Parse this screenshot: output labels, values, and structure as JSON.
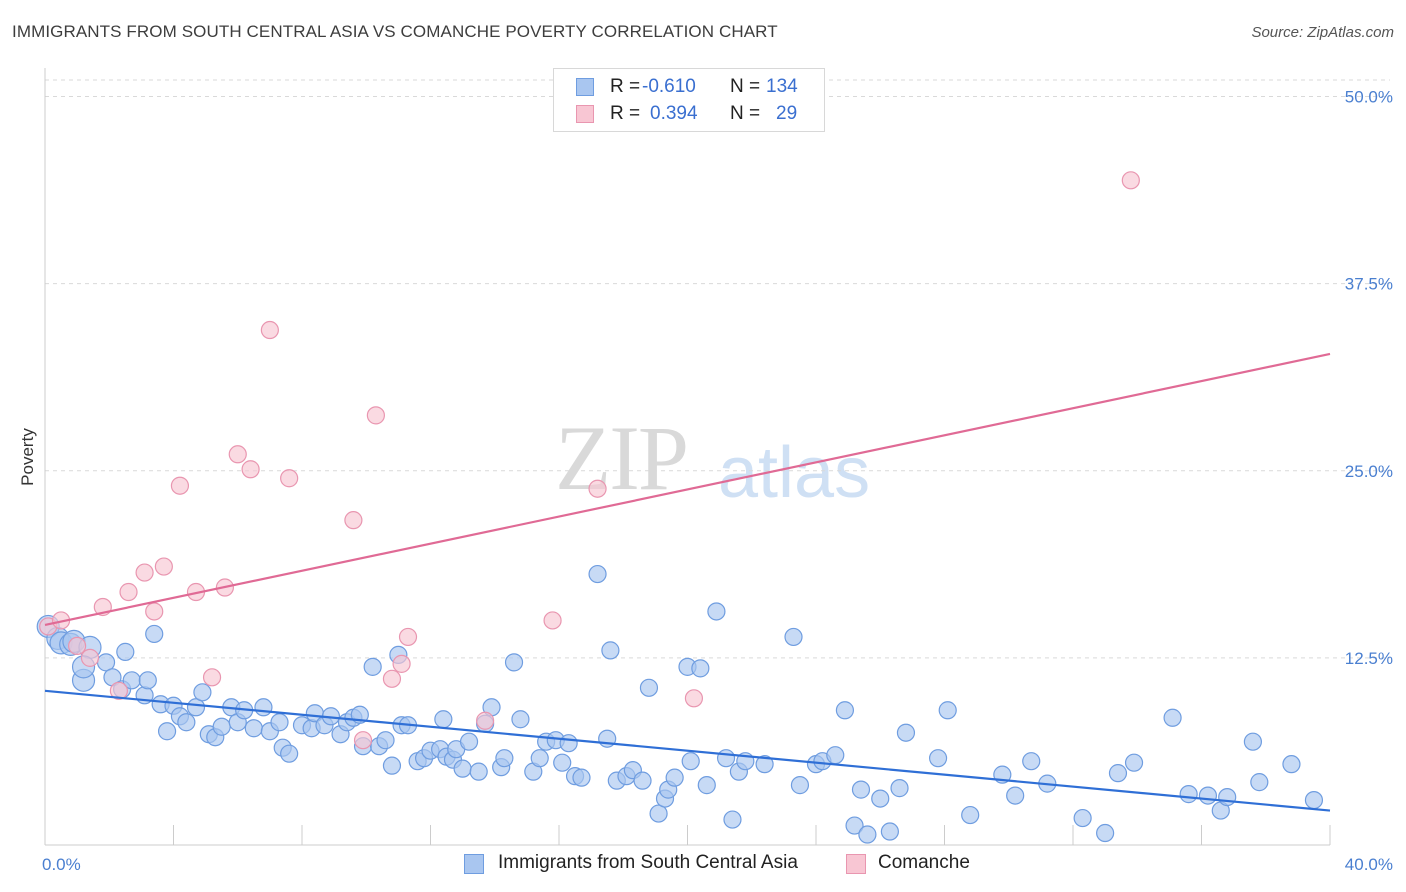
{
  "title": "IMMIGRANTS FROM SOUTH CENTRAL ASIA VS COMANCHE POVERTY CORRELATION CHART",
  "source": "Source: ZipAtlas.com",
  "watermark": {
    "zip": "ZIP",
    "atlas": "atlas"
  },
  "legend": {
    "rows": [
      {
        "r_label": "R =",
        "r_value": "-0.610",
        "n_label": "N =",
        "n_value": "134",
        "color": "#a9c6f0",
        "border": "#6f9de0"
      },
      {
        "r_label": "R =",
        "r_value": "0.394",
        "n_label": "N =",
        "n_value": "29",
        "color": "#f8c6d3",
        "border": "#e996b0"
      }
    ]
  },
  "bottom_legend": [
    {
      "label": "Immigrants from South Central Asia",
      "color": "#a9c6f0",
      "border": "#6f9de0"
    },
    {
      "label": "Comanche",
      "color": "#f8c6d3",
      "border": "#e996b0"
    }
  ],
  "chart_data": {
    "type": "scatter",
    "title": "IMMIGRANTS FROM SOUTH CENTRAL ASIA VS COMANCHE POVERTY CORRELATION CHART",
    "xlabel": "",
    "ylabel": "Poverty",
    "xlim": [
      0,
      40
    ],
    "ylim": [
      0,
      50
    ],
    "x_tick_labels": [
      "0.0%",
      "40.0%"
    ],
    "y_ticks": [
      12.5,
      25.0,
      37.5,
      50.0
    ],
    "y_tick_labels": [
      "12.5%",
      "25.0%",
      "37.5%",
      "50.0%"
    ],
    "grid": "horizontal dashed",
    "series": [
      {
        "name": "Immigrants from South Central Asia",
        "color": "#6f9de0",
        "fill": "#a9c6f0",
        "trend": {
          "x": [
            0,
            40
          ],
          "y": [
            10.3,
            2.3
          ],
          "color": "#2f6fd6"
        },
        "points": [
          [
            0.1,
            14.6
          ],
          [
            0.4,
            13.8
          ],
          [
            0.5,
            13.5
          ],
          [
            0.8,
            13.4
          ],
          [
            0.9,
            13.6
          ],
          [
            1.4,
            13.2
          ],
          [
            1.2,
            11.0
          ],
          [
            1.2,
            11.9
          ],
          [
            1.9,
            12.2
          ],
          [
            2.1,
            11.2
          ],
          [
            2.4,
            10.4
          ],
          [
            2.5,
            12.9
          ],
          [
            2.7,
            11.0
          ],
          [
            3.1,
            10.0
          ],
          [
            3.2,
            11.0
          ],
          [
            3.4,
            14.1
          ],
          [
            3.6,
            9.4
          ],
          [
            3.8,
            7.6
          ],
          [
            4.0,
            9.3
          ],
          [
            4.2,
            8.6
          ],
          [
            4.4,
            8.2
          ],
          [
            4.7,
            9.2
          ],
          [
            4.9,
            10.2
          ],
          [
            5.1,
            7.4
          ],
          [
            5.3,
            7.2
          ],
          [
            5.5,
            7.9
          ],
          [
            5.8,
            9.2
          ],
          [
            6.0,
            8.2
          ],
          [
            6.2,
            9.0
          ],
          [
            6.5,
            7.8
          ],
          [
            6.8,
            9.2
          ],
          [
            7.0,
            7.6
          ],
          [
            7.3,
            8.2
          ],
          [
            7.4,
            6.5
          ],
          [
            7.6,
            6.1
          ],
          [
            8.0,
            8.0
          ],
          [
            8.3,
            7.8
          ],
          [
            8.4,
            8.8
          ],
          [
            8.7,
            8.0
          ],
          [
            8.9,
            8.6
          ],
          [
            9.2,
            7.4
          ],
          [
            9.4,
            8.2
          ],
          [
            9.6,
            8.5
          ],
          [
            9.8,
            8.7
          ],
          [
            9.9,
            6.6
          ],
          [
            10.2,
            11.9
          ],
          [
            10.4,
            6.6
          ],
          [
            10.6,
            7.0
          ],
          [
            10.8,
            5.3
          ],
          [
            11.0,
            12.7
          ],
          [
            11.1,
            8.0
          ],
          [
            11.3,
            8.0
          ],
          [
            11.6,
            5.6
          ],
          [
            11.8,
            5.8
          ],
          [
            12.0,
            6.3
          ],
          [
            12.3,
            6.4
          ],
          [
            12.4,
            8.4
          ],
          [
            12.5,
            5.9
          ],
          [
            12.7,
            5.7
          ],
          [
            12.8,
            6.4
          ],
          [
            13.0,
            5.1
          ],
          [
            13.2,
            6.9
          ],
          [
            13.5,
            4.9
          ],
          [
            13.7,
            8.1
          ],
          [
            13.9,
            9.2
          ],
          [
            14.2,
            5.2
          ],
          [
            14.3,
            5.8
          ],
          [
            14.6,
            12.2
          ],
          [
            14.8,
            8.4
          ],
          [
            15.2,
            4.9
          ],
          [
            15.4,
            5.8
          ],
          [
            15.6,
            6.9
          ],
          [
            15.9,
            7.0
          ],
          [
            16.1,
            5.5
          ],
          [
            16.3,
            6.8
          ],
          [
            16.5,
            4.6
          ],
          [
            16.7,
            4.5
          ],
          [
            17.2,
            18.1
          ],
          [
            17.5,
            7.1
          ],
          [
            17.6,
            13.0
          ],
          [
            17.8,
            4.3
          ],
          [
            18.1,
            4.6
          ],
          [
            18.3,
            5.0
          ],
          [
            18.6,
            4.3
          ],
          [
            18.8,
            10.5
          ],
          [
            19.1,
            2.1
          ],
          [
            19.3,
            3.1
          ],
          [
            19.4,
            3.7
          ],
          [
            19.6,
            4.5
          ],
          [
            20.0,
            11.9
          ],
          [
            20.1,
            5.6
          ],
          [
            20.4,
            11.8
          ],
          [
            20.6,
            4.0
          ],
          [
            20.9,
            15.6
          ],
          [
            21.2,
            5.8
          ],
          [
            21.4,
            1.7
          ],
          [
            21.6,
            4.9
          ],
          [
            21.8,
            5.6
          ],
          [
            22.4,
            5.4
          ],
          [
            23.3,
            13.9
          ],
          [
            23.5,
            4.0
          ],
          [
            24.0,
            5.4
          ],
          [
            24.2,
            5.6
          ],
          [
            24.6,
            6.0
          ],
          [
            24.9,
            9.0
          ],
          [
            25.2,
            1.3
          ],
          [
            25.4,
            3.7
          ],
          [
            25.6,
            0.7
          ],
          [
            26.0,
            3.1
          ],
          [
            26.3,
            0.9
          ],
          [
            26.6,
            3.8
          ],
          [
            26.8,
            7.5
          ],
          [
            27.8,
            5.8
          ],
          [
            28.1,
            9.0
          ],
          [
            28.8,
            2.0
          ],
          [
            29.8,
            4.7
          ],
          [
            30.2,
            3.3
          ],
          [
            30.7,
            5.6
          ],
          [
            31.2,
            4.1
          ],
          [
            32.3,
            1.8
          ],
          [
            33.0,
            0.8
          ],
          [
            33.4,
            4.8
          ],
          [
            33.9,
            5.5
          ],
          [
            35.1,
            8.5
          ],
          [
            35.6,
            3.4
          ],
          [
            36.2,
            3.3
          ],
          [
            36.6,
            2.3
          ],
          [
            36.8,
            3.2
          ],
          [
            37.6,
            6.9
          ],
          [
            37.8,
            4.2
          ],
          [
            38.8,
            5.4
          ],
          [
            39.5,
            3.0
          ]
        ]
      },
      {
        "name": "Comanche",
        "color": "#e996b0",
        "fill": "#f8c6d3",
        "trend": {
          "x": [
            0,
            40
          ],
          "y": [
            14.7,
            32.8
          ],
          "color": "#e06a95"
        },
        "points": [
          [
            0.1,
            14.6
          ],
          [
            0.5,
            15.0
          ],
          [
            1.0,
            13.3
          ],
          [
            1.4,
            12.5
          ],
          [
            1.8,
            15.9
          ],
          [
            2.3,
            10.3
          ],
          [
            2.6,
            16.9
          ],
          [
            3.1,
            18.2
          ],
          [
            3.4,
            15.6
          ],
          [
            3.7,
            18.6
          ],
          [
            4.2,
            24.0
          ],
          [
            4.7,
            16.9
          ],
          [
            5.2,
            11.2
          ],
          [
            5.6,
            17.2
          ],
          [
            6.0,
            26.1
          ],
          [
            6.4,
            25.1
          ],
          [
            7.0,
            34.4
          ],
          [
            7.6,
            24.5
          ],
          [
            9.9,
            7.0
          ],
          [
            9.6,
            21.7
          ],
          [
            10.3,
            28.7
          ],
          [
            11.1,
            12.1
          ],
          [
            10.8,
            11.1
          ],
          [
            11.3,
            13.9
          ],
          [
            13.7,
            8.3
          ],
          [
            15.8,
            15.0
          ],
          [
            17.2,
            23.8
          ],
          [
            20.2,
            9.8
          ],
          [
            33.8,
            44.4
          ]
        ]
      }
    ]
  }
}
